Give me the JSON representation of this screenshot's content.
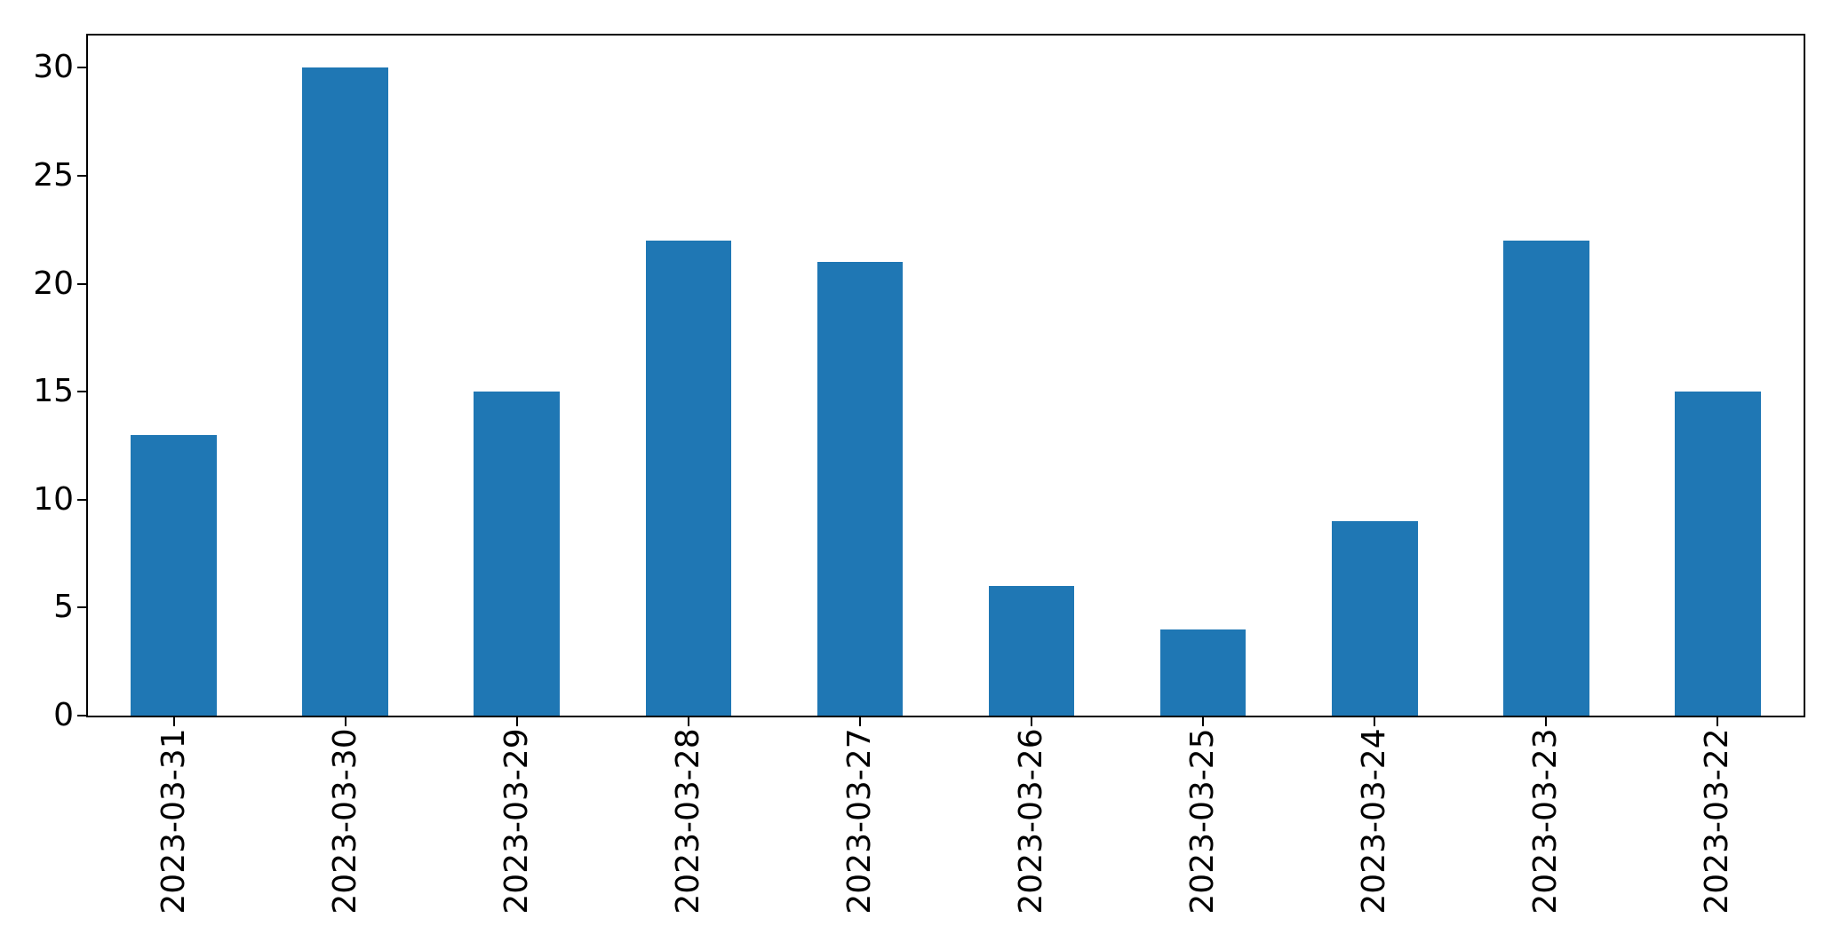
{
  "chart_data": {
    "type": "bar",
    "title": "",
    "xlabel": "",
    "ylabel": "",
    "categories": [
      "2023-03-31",
      "2023-03-30",
      "2023-03-29",
      "2023-03-28",
      "2023-03-27",
      "2023-03-26",
      "2023-03-25",
      "2023-03-24",
      "2023-03-23",
      "2023-03-22"
    ],
    "values": [
      13,
      30,
      15,
      22,
      21,
      6,
      4,
      9,
      22,
      15
    ],
    "yticks": [
      0,
      5,
      10,
      15,
      20,
      25,
      30
    ],
    "ylim": [
      0,
      31.5
    ],
    "bar_color": "#1f77b4",
    "bar_width_fraction": 0.5,
    "x_tick_label_rotation_deg": 90,
    "grid": false,
    "legend": null,
    "frame": "full-box",
    "background_color": "#ffffff",
    "spine_color": "#000000",
    "tick_label_color": "#000000"
  }
}
